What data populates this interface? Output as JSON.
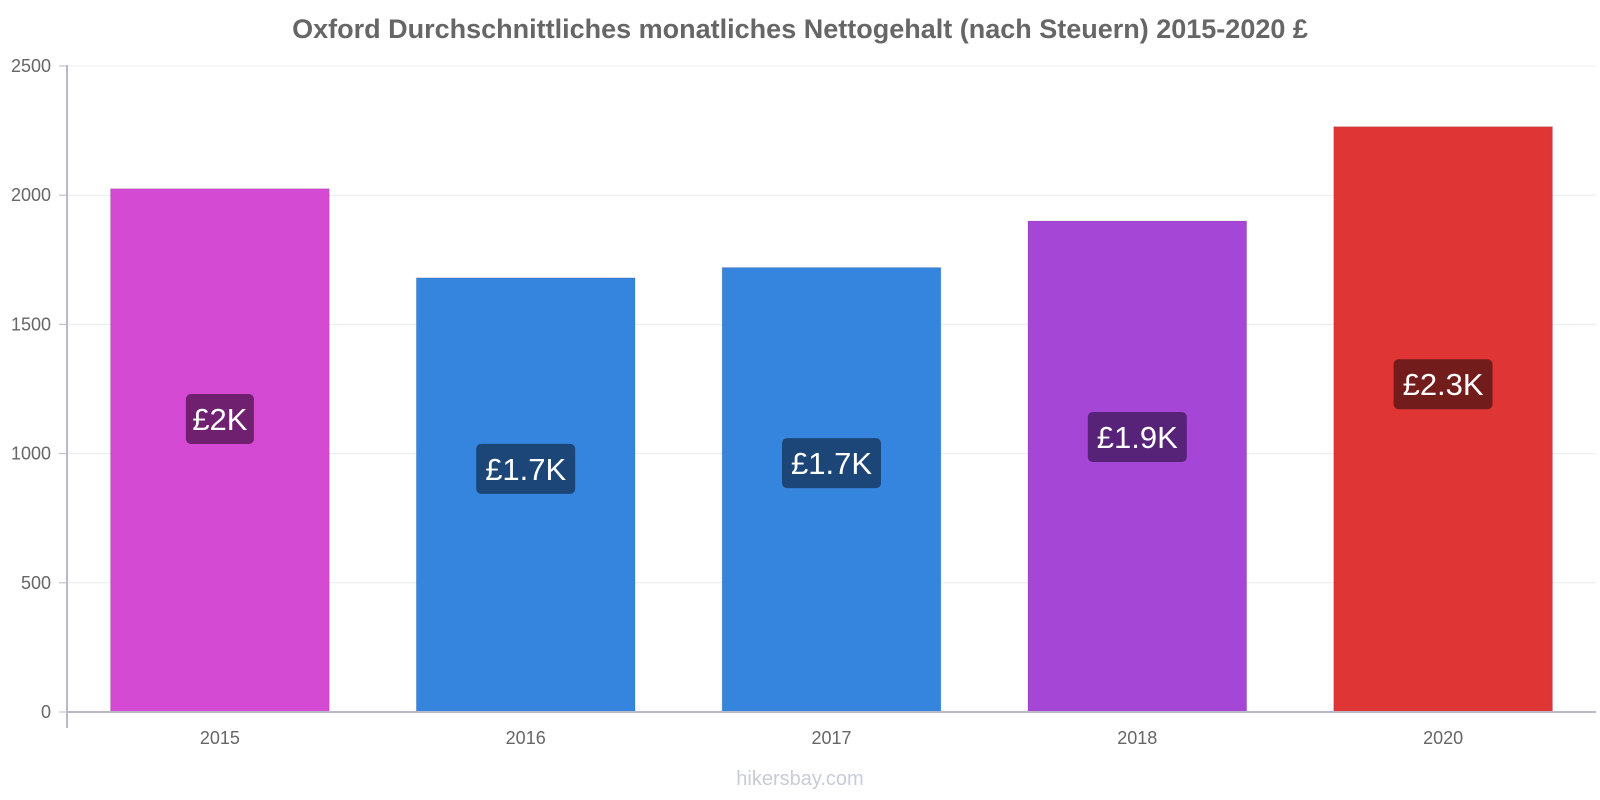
{
  "chart_data": {
    "type": "bar",
    "title": "Oxford Durchschnittliches monatliches Nettogehalt (nach Steuern) 2015-2020 £",
    "xlabel": "",
    "ylabel": "",
    "categories": [
      "2015",
      "2016",
      "2017",
      "2018",
      "2020"
    ],
    "values": [
      2025,
      1680,
      1720,
      1900,
      2265
    ],
    "data_labels": [
      "£2K",
      "£1.7K",
      "£1.7K",
      "£1.9K",
      "£2.3K"
    ],
    "bar_colors": [
      "#d54ad3",
      "#3584de",
      "#3584de",
      "#a646d7",
      "#e03535"
    ],
    "label_bg_colors": [
      "#6f2170",
      "#1b4677",
      "#1b4677",
      "#562378",
      "#721c1c"
    ],
    "ylim": [
      0,
      2500
    ],
    "yticks": [
      0,
      500,
      1000,
      1500,
      2000,
      2500
    ],
    "grid": true,
    "legend": "none"
  },
  "footer": {
    "watermark": "hikersbay.com"
  }
}
